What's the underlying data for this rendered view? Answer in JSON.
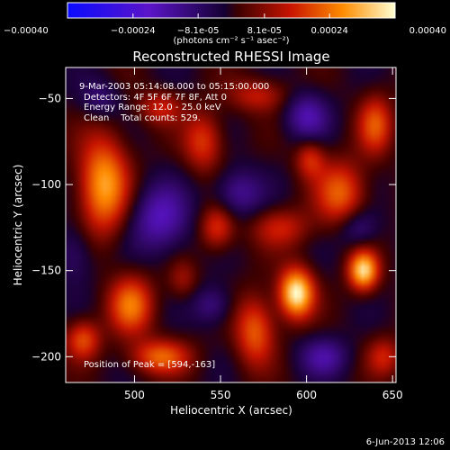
{
  "chart_data": {
    "type": "heatmap",
    "title": "Reconstructed RHESSI Image",
    "xlabel": "Heliocentric X (arcsec)",
    "ylabel": "Heliocentric Y (arcsec)",
    "xlim": [
      460,
      652
    ],
    "ylim": [
      -215,
      -32
    ],
    "xticks": [
      500,
      550,
      600,
      650
    ],
    "yticks": [
      -50,
      -100,
      -150,
      -200
    ],
    "colorbar": {
      "min": -0.0004,
      "max": 0.0004,
      "tick_values": [
        -0.0004,
        -0.00024,
        -8.1e-05,
        8.1e-05,
        0.00024,
        0.0004
      ],
      "tick_labels": [
        "-0.00040",
        "-0.00024",
        "-8.1e-05",
        "8.1e-05",
        "0.00024",
        "0.00040"
      ],
      "unit_label": "(photons cm⁻² s⁻¹ asec⁻²)"
    },
    "annotations": {
      "time_range": "9-Mar-2003 05:14:08.000 to 05:15:00.000",
      "detectors": "Detectors: 4F 5F 6F 7F 8F, Att 0",
      "energy_range": "Energy Range: 12.0 - 25.0 keV",
      "method": "Clean    Total counts: 529.",
      "peak": "Position of Peak = [594,-163]"
    },
    "blobs": [
      {
        "x": 594,
        "y": -163,
        "sx": 7,
        "sy": 10,
        "v": 1.0
      },
      {
        "x": 633,
        "y": -150,
        "sx": 6,
        "sy": 8,
        "v": 0.9
      },
      {
        "x": 482,
        "y": -100,
        "sx": 10,
        "sy": 20,
        "v": 0.75
      },
      {
        "x": 498,
        "y": -170,
        "sx": 9,
        "sy": 12,
        "v": 0.6
      },
      {
        "x": 515,
        "y": -200,
        "sx": 12,
        "sy": 7,
        "v": 0.55
      },
      {
        "x": 570,
        "y": -185,
        "sx": 8,
        "sy": 14,
        "v": 0.55
      },
      {
        "x": 620,
        "y": -105,
        "sx": 10,
        "sy": 13,
        "v": 0.55
      },
      {
        "x": 640,
        "y": -65,
        "sx": 7,
        "sy": 12,
        "v": 0.5
      },
      {
        "x": 540,
        "y": -75,
        "sx": 8,
        "sy": 12,
        "v": 0.45
      },
      {
        "x": 470,
        "y": -190,
        "sx": 7,
        "sy": 8,
        "v": 0.5
      },
      {
        "x": 602,
        "y": -85,
        "sx": 6,
        "sy": 8,
        "v": 0.4
      },
      {
        "x": 572,
        "y": -48,
        "sx": 12,
        "sy": 7,
        "v": 0.35
      },
      {
        "x": 548,
        "y": -125,
        "sx": 7,
        "sy": 9,
        "v": 0.45
      },
      {
        "x": 528,
        "y": -155,
        "sx": 6,
        "sy": 8,
        "v": 0.25
      },
      {
        "x": 585,
        "y": -125,
        "sx": 12,
        "sy": 8,
        "v": 0.35
      },
      {
        "x": 645,
        "y": -200,
        "sx": 7,
        "sy": 8,
        "v": 0.35
      },
      {
        "x": 515,
        "y": -55,
        "sx": 9,
        "sy": 7,
        "v": 0.35
      },
      {
        "x": 560,
        "y": -105,
        "sx": 10,
        "sy": 10,
        "v": -0.35
      },
      {
        "x": 515,
        "y": -120,
        "sx": 12,
        "sy": 14,
        "v": -0.45
      },
      {
        "x": 610,
        "y": -200,
        "sx": 10,
        "sy": 8,
        "v": -0.35
      },
      {
        "x": 600,
        "y": -60,
        "sx": 9,
        "sy": 10,
        "v": -0.4
      },
      {
        "x": 465,
        "y": -140,
        "sx": 8,
        "sy": 12,
        "v": -0.25
      },
      {
        "x": 630,
        "y": -125,
        "sx": 8,
        "sy": 8,
        "v": -0.3
      },
      {
        "x": 545,
        "y": -170,
        "sx": 8,
        "sy": 8,
        "v": -0.3
      },
      {
        "x": 480,
        "y": -50,
        "sx": 8,
        "sy": 8,
        "v": -0.25
      }
    ]
  },
  "footer_timestamp": "6-Jun-2013 12:06"
}
